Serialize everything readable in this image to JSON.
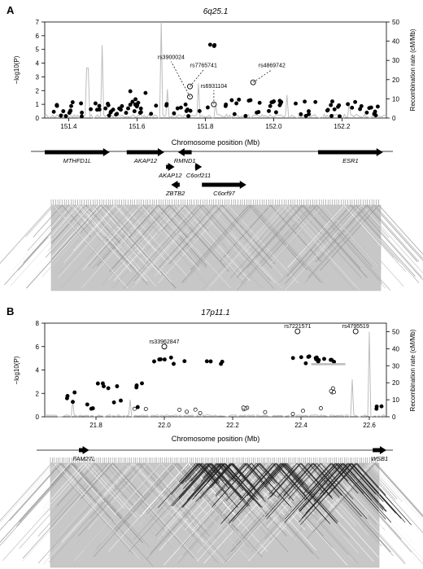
{
  "chart_data": [
    {
      "panel_label": "A",
      "type": "scatter",
      "title": "6q25.1",
      "xlabel": "Chromosome position (Mb)",
      "ylabel_left": "−log10(P)",
      "ylabel_right": "Recombination rate (cM/Mb)",
      "xlim": [
        151.33,
        152.33
      ],
      "ylim_left": [
        0,
        7
      ],
      "ylim_right": [
        0,
        50
      ],
      "xticks": [
        "151.4",
        "151.6",
        "151.8",
        "152.0",
        "152.2"
      ],
      "xtick_values": [
        151.4,
        151.6,
        151.8,
        152.0,
        152.2
      ],
      "yticks_left": [
        "0",
        "1",
        "2",
        "3",
        "4",
        "5",
        "6",
        "7"
      ],
      "yticks_right": [
        "0",
        "10",
        "20",
        "30",
        "40",
        "50"
      ],
      "annotated_snps": [
        {
          "label": "rs3900024",
          "x": 151.755,
          "y": 1.55,
          "tx": 151.7,
          "ty": 4.3
        },
        {
          "label": "rs7765741",
          "x": 151.755,
          "y": 2.3,
          "tx": 151.795,
          "ty": 3.7
        },
        {
          "label": "rs6931104",
          "x": 151.825,
          "y": 1.0,
          "tx": 151.825,
          "ty": 2.2
        },
        {
          "label": "rs4869742",
          "x": 151.94,
          "y": 2.6,
          "tx": 151.995,
          "ty": 3.7
        }
      ],
      "genes": [
        {
          "name": "MTHFD1L",
          "start": 151.33,
          "end": 151.52,
          "row": 0,
          "dir": "+"
        },
        {
          "name": "AKAP12",
          "start": 151.57,
          "end": 151.68,
          "row": 0,
          "dir": "+"
        },
        {
          "name": "RMND1",
          "start": 151.72,
          "end": 151.76,
          "row": 0,
          "dir": "-"
        },
        {
          "name": "ESR1",
          "start": 152.13,
          "end": 152.32,
          "row": 0,
          "dir": "+"
        },
        {
          "name": "AKAP12",
          "start": 151.685,
          "end": 151.71,
          "row": 1,
          "dir": "+"
        },
        {
          "name": "C6orf211",
          "start": 151.77,
          "end": 151.79,
          "row": 1,
          "dir": "+"
        },
        {
          "name": "ZBTB2",
          "start": 151.7,
          "end": 151.725,
          "row": 2,
          "dir": "-"
        },
        {
          "name": "C6orf97",
          "start": 151.79,
          "end": 151.92,
          "row": 2,
          "dir": "+"
        }
      ]
    },
    {
      "panel_label": "B",
      "type": "scatter",
      "title": "17p11.1",
      "xlabel": "Chromosome position (Mb)",
      "ylabel_left": "−log10(P)",
      "ylabel_right": "Recombination rate (cM/Mb)",
      "xlim": [
        21.65,
        22.65
      ],
      "ylim_left": [
        0,
        8
      ],
      "ylim_right": [
        0,
        55
      ],
      "xticks": [
        "21.8",
        "22.0",
        "22.2",
        "22.4",
        "22.6"
      ],
      "xtick_values": [
        21.8,
        22.0,
        22.2,
        22.4,
        22.6
      ],
      "yticks_left": [
        "0",
        "2",
        "4",
        "6",
        "8"
      ],
      "yticks_right": [
        "0",
        "10",
        "20",
        "30",
        "40",
        "50"
      ],
      "annotated_snps": [
        {
          "label": "rs33962847",
          "x": 22.0,
          "y": 6.0
        },
        {
          "label": "rs7221571",
          "x": 22.39,
          "y": 7.3
        },
        {
          "label": "rs4795519",
          "x": 22.56,
          "y": 7.3
        }
      ],
      "genes": [
        {
          "name": "FAM27L",
          "start": 21.75,
          "end": 21.78,
          "row": 0,
          "dir": "+"
        },
        {
          "name": "WSB1",
          "start": 22.61,
          "end": 22.65,
          "row": 0,
          "dir": "+"
        }
      ]
    }
  ]
}
